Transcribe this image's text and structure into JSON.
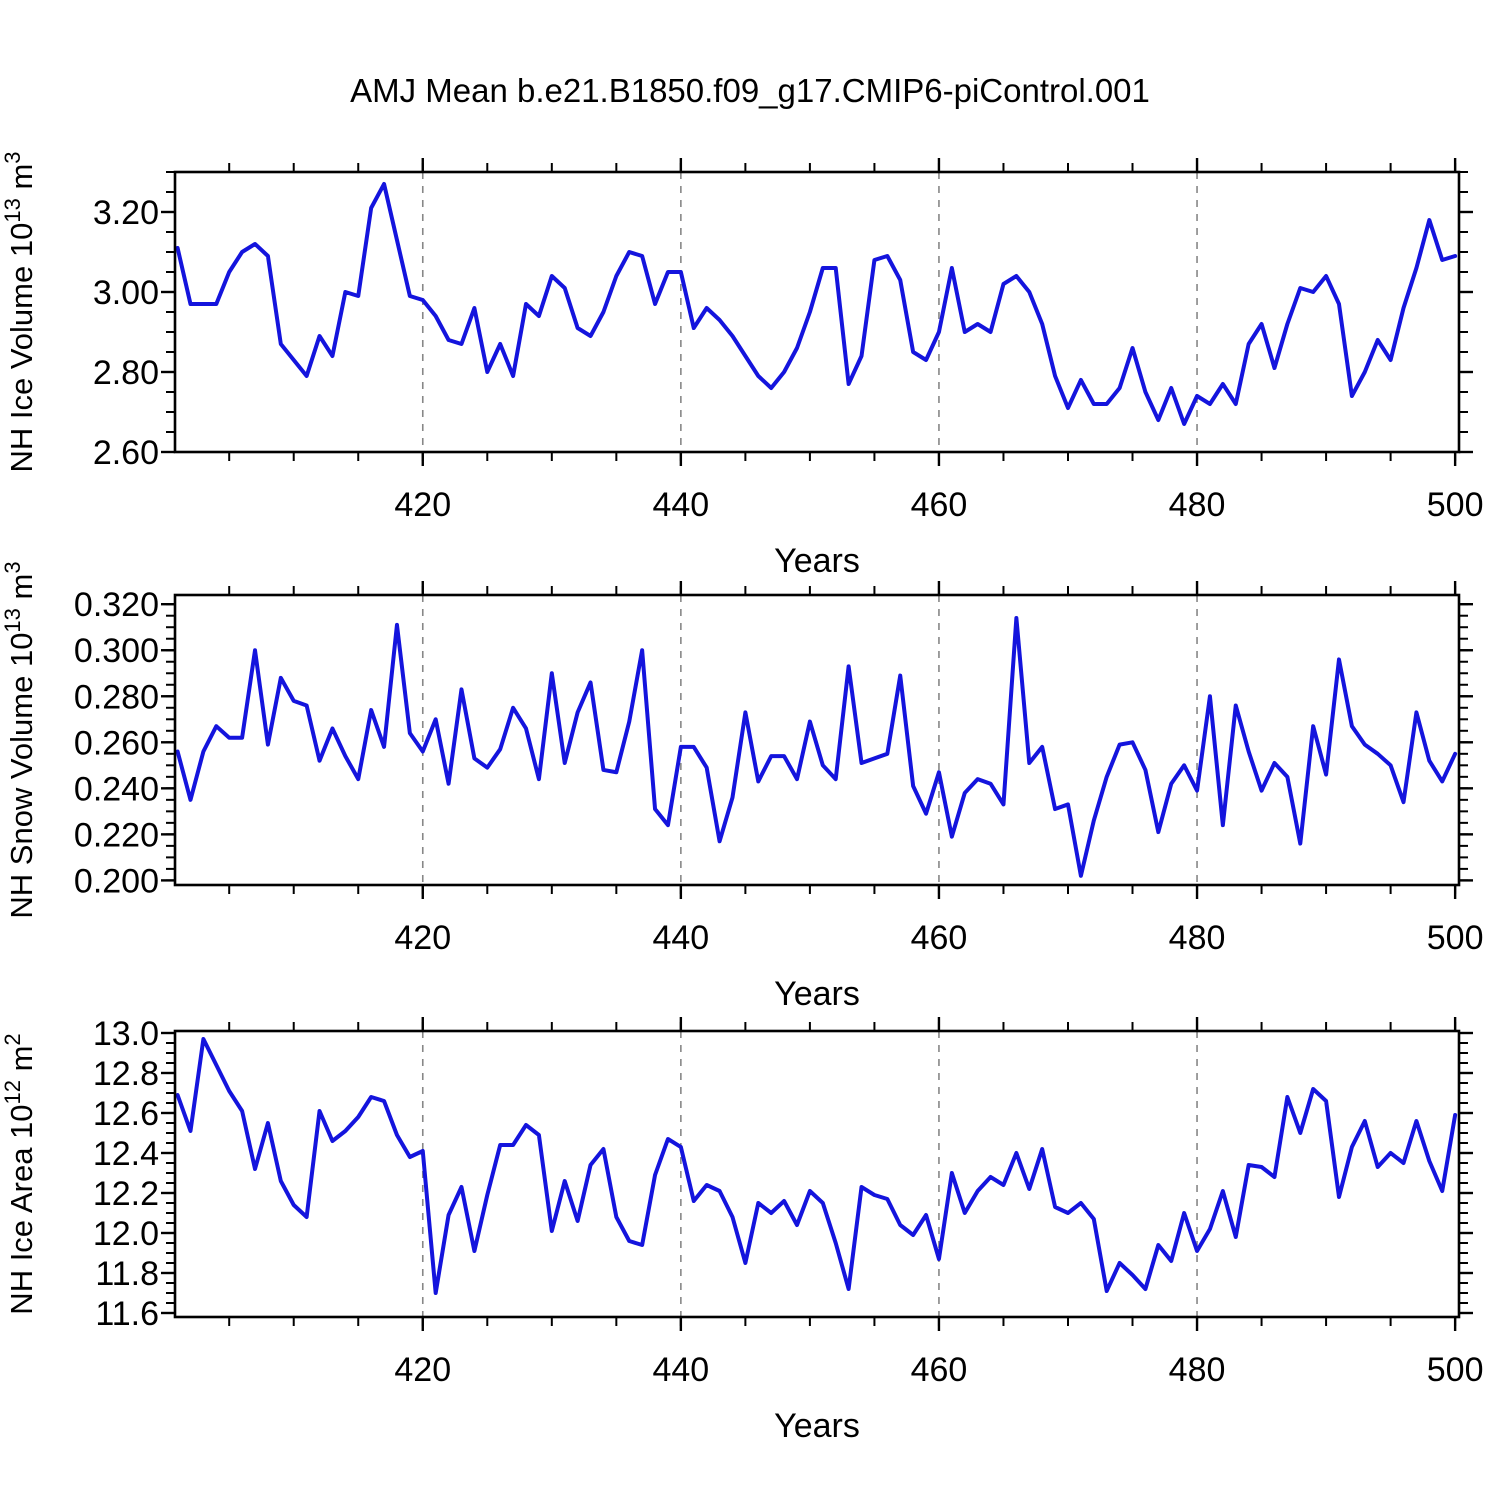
{
  "title": "AMJ Mean b.e21.B1850.f09_g17.CMIP6-piControl.001",
  "style": {
    "line_color": "#1414dd",
    "axis_color": "#000000",
    "gridline_color": "#878787",
    "background_color": "#ffffff"
  },
  "chart_data": [
    {
      "id": "nh-ice-volume",
      "type": "line",
      "xlabel": "Years",
      "ylabel_text": "NH Ice Volume 10^13 m^3",
      "ylabel_parts": [
        {
          "t": "NH Ice Volume 10"
        },
        {
          "t": "13",
          "sup": true
        },
        {
          "t": " m"
        },
        {
          "t": "3",
          "sup": true
        }
      ],
      "xlim": [
        400.8,
        500.3
      ],
      "ylim": [
        2.6,
        3.3
      ],
      "xtick_values": [
        420,
        440,
        460,
        480,
        500
      ],
      "xtick_labels": [
        "420",
        "440",
        "460",
        "480",
        "500"
      ],
      "x_minor_step": 5,
      "x_gridlines": [
        420,
        440,
        460,
        480
      ],
      "ytick_values": [
        2.6,
        2.8,
        3.0,
        3.2
      ],
      "ytick_labels": [
        "2.60",
        "2.80",
        "3.00",
        "3.20"
      ],
      "y_minor_step": 0.05,
      "grid": "dashed-vertical",
      "legend": "none",
      "x_start_year": 401,
      "x_step": 1,
      "values": [
        3.11,
        2.97,
        2.97,
        2.97,
        3.05,
        3.1,
        3.12,
        3.09,
        2.87,
        2.83,
        2.79,
        2.89,
        2.84,
        3.0,
        2.99,
        3.21,
        3.27,
        3.13,
        2.99,
        2.98,
        2.94,
        2.88,
        2.87,
        2.96,
        2.8,
        2.87,
        2.79,
        2.97,
        2.94,
        3.04,
        3.01,
        2.91,
        2.89,
        2.95,
        3.04,
        3.1,
        3.09,
        2.97,
        3.05,
        3.05,
        2.91,
        2.96,
        2.93,
        2.89,
        2.84,
        2.79,
        2.76,
        2.8,
        2.86,
        2.95,
        3.06,
        3.06,
        2.77,
        2.84,
        3.08,
        3.09,
        3.03,
        2.85,
        2.83,
        2.9,
        3.06,
        2.9,
        2.92,
        2.9,
        3.02,
        3.04,
        3.0,
        2.92,
        2.79,
        2.71,
        2.78,
        2.72,
        2.72,
        2.76,
        2.86,
        2.75,
        2.68,
        2.76,
        2.67,
        2.74,
        2.72,
        2.77,
        2.72,
        2.87,
        2.92,
        2.81,
        2.92,
        3.01,
        3.0,
        3.04,
        2.97,
        2.74,
        2.8,
        2.88,
        2.83,
        2.96,
        3.06,
        3.18,
        3.08,
        3.09
      ]
    },
    {
      "id": "nh-snow-volume",
      "type": "line",
      "xlabel": "Years",
      "ylabel_text": "NH Snow Volume 10^13 m^3",
      "ylabel_parts": [
        {
          "t": "NH Snow Volume 10"
        },
        {
          "t": "13",
          "sup": true
        },
        {
          "t": " m"
        },
        {
          "t": "3",
          "sup": true
        }
      ],
      "xlim": [
        400.8,
        500.3
      ],
      "ylim": [
        0.198,
        0.324
      ],
      "xtick_values": [
        420,
        440,
        460,
        480,
        500
      ],
      "xtick_labels": [
        "420",
        "440",
        "460",
        "480",
        "500"
      ],
      "x_minor_step": 5,
      "x_gridlines": [
        420,
        440,
        460,
        480
      ],
      "ytick_values": [
        0.2,
        0.22,
        0.24,
        0.26,
        0.28,
        0.3,
        0.32
      ],
      "ytick_labels": [
        "0.200",
        "0.220",
        "0.240",
        "0.260",
        "0.280",
        "0.300",
        "0.320"
      ],
      "y_minor_step": 0.005,
      "grid": "dashed-vertical",
      "legend": "none",
      "x_start_year": 401,
      "x_step": 1,
      "values": [
        0.256,
        0.235,
        0.256,
        0.267,
        0.262,
        0.262,
        0.3,
        0.259,
        0.288,
        0.278,
        0.276,
        0.252,
        0.266,
        0.254,
        0.244,
        0.274,
        0.258,
        0.311,
        0.264,
        0.256,
        0.27,
        0.242,
        0.283,
        0.253,
        0.249,
        0.257,
        0.275,
        0.266,
        0.244,
        0.29,
        0.251,
        0.273,
        0.286,
        0.248,
        0.247,
        0.269,
        0.3,
        0.231,
        0.224,
        0.258,
        0.258,
        0.249,
        0.217,
        0.236,
        0.273,
        0.243,
        0.254,
        0.254,
        0.244,
        0.269,
        0.25,
        0.244,
        0.293,
        0.251,
        0.253,
        0.255,
        0.289,
        0.241,
        0.229,
        0.247,
        0.219,
        0.238,
        0.244,
        0.242,
        0.233,
        0.314,
        0.251,
        0.258,
        0.231,
        0.233,
        0.202,
        0.226,
        0.245,
        0.259,
        0.26,
        0.248,
        0.221,
        0.242,
        0.25,
        0.239,
        0.28,
        0.224,
        0.276,
        0.256,
        0.239,
        0.251,
        0.245,
        0.216,
        0.267,
        0.246,
        0.296,
        0.267,
        0.259,
        0.255,
        0.25,
        0.234,
        0.273,
        0.252,
        0.243,
        0.255
      ]
    },
    {
      "id": "nh-ice-area",
      "type": "line",
      "xlabel": "Years",
      "ylabel_text": "NH Ice Area 10^12 m^2",
      "ylabel_parts": [
        {
          "t": "NH Ice Area 10"
        },
        {
          "t": "12",
          "sup": true
        },
        {
          "t": " m"
        },
        {
          "t": "2",
          "sup": true
        }
      ],
      "xlim": [
        400.8,
        500.3
      ],
      "ylim": [
        11.58,
        13.01
      ],
      "xtick_values": [
        420,
        440,
        460,
        480,
        500
      ],
      "xtick_labels": [
        "420",
        "440",
        "460",
        "480",
        "500"
      ],
      "x_minor_step": 5,
      "x_gridlines": [
        420,
        440,
        460,
        480
      ],
      "ytick_values": [
        11.6,
        11.8,
        12.0,
        12.2,
        12.4,
        12.6,
        12.8,
        13.0
      ],
      "ytick_labels": [
        "11.6",
        "11.8",
        "12.0",
        "12.2",
        "12.4",
        "12.6",
        "12.8",
        "13.0"
      ],
      "y_minor_step": 0.05,
      "grid": "dashed-vertical",
      "legend": "none",
      "x_start_year": 401,
      "x_step": 1,
      "values": [
        12.69,
        12.51,
        12.97,
        12.84,
        12.71,
        12.61,
        12.32,
        12.55,
        12.26,
        12.14,
        12.08,
        12.61,
        12.46,
        12.51,
        12.58,
        12.68,
        12.66,
        12.49,
        12.38,
        12.41,
        11.7,
        12.09,
        12.23,
        11.91,
        12.19,
        12.44,
        12.44,
        12.54,
        12.49,
        12.01,
        12.26,
        12.06,
        12.34,
        12.42,
        12.08,
        11.96,
        11.94,
        12.29,
        12.47,
        12.43,
        12.16,
        12.24,
        12.21,
        12.08,
        11.85,
        12.15,
        12.1,
        12.16,
        12.04,
        12.21,
        12.15,
        11.95,
        11.72,
        12.23,
        12.19,
        12.17,
        12.04,
        11.99,
        12.09,
        11.87,
        12.3,
        12.1,
        12.21,
        12.28,
        12.24,
        12.4,
        12.22,
        12.42,
        12.13,
        12.1,
        12.15,
        12.07,
        11.71,
        11.85,
        11.79,
        11.72,
        11.94,
        11.86,
        12.1,
        11.91,
        12.02,
        12.21,
        11.98,
        12.34,
        12.33,
        12.28,
        12.68,
        12.5,
        12.72,
        12.66,
        12.18,
        12.43,
        12.56,
        12.33,
        12.4,
        12.35,
        12.56,
        12.36,
        12.21,
        12.59
      ]
    }
  ]
}
